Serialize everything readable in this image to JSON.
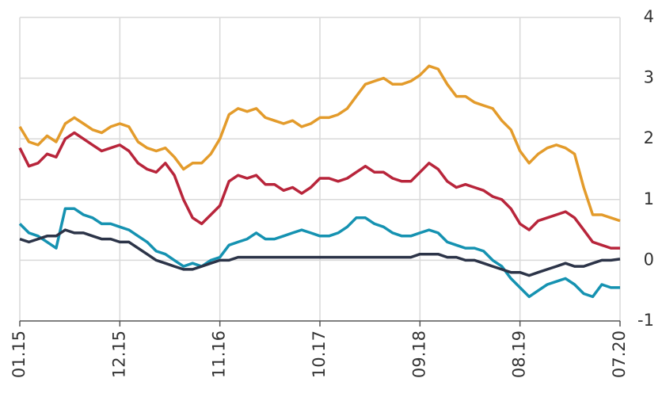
{
  "chart_data": {
    "type": "line",
    "categories": [
      "01.15",
      null,
      null,
      null,
      null,
      null,
      null,
      null,
      null,
      null,
      null,
      "12.15",
      null,
      null,
      null,
      null,
      null,
      null,
      null,
      null,
      null,
      null,
      "11.16",
      null,
      null,
      null,
      null,
      null,
      null,
      null,
      null,
      null,
      null,
      "10.17",
      null,
      null,
      null,
      null,
      null,
      null,
      null,
      null,
      null,
      null,
      "09.18",
      null,
      null,
      null,
      null,
      null,
      null,
      null,
      null,
      null,
      null,
      "08.19",
      null,
      null,
      null,
      null,
      null,
      null,
      null,
      null,
      null,
      null,
      "07.20"
    ],
    "series": [
      {
        "color": "#e39b2b",
        "values": [
          2.2,
          1.95,
          1.9,
          2.05,
          1.95,
          2.25,
          2.35,
          2.25,
          2.15,
          2.1,
          2.2,
          2.25,
          2.2,
          1.95,
          1.85,
          1.8,
          1.85,
          1.7,
          1.5,
          1.6,
          1.6,
          1.75,
          2.0,
          2.4,
          2.5,
          2.45,
          2.5,
          2.35,
          2.3,
          2.25,
          2.3,
          2.2,
          2.25,
          2.35,
          2.35,
          2.4,
          2.5,
          2.7,
          2.9,
          2.95,
          3.0,
          2.9,
          2.9,
          2.95,
          3.05,
          3.2,
          3.15,
          2.9,
          2.7,
          2.7,
          2.6,
          2.55,
          2.5,
          2.3,
          2.15,
          1.8,
          1.6,
          1.75,
          1.85,
          1.9,
          1.85,
          1.75,
          1.2,
          0.75,
          0.75,
          0.7,
          0.65
        ]
      },
      {
        "color": "#b8253b",
        "values": [
          1.85,
          1.55,
          1.6,
          1.75,
          1.7,
          2.0,
          2.1,
          2.0,
          1.9,
          1.8,
          1.85,
          1.9,
          1.8,
          1.6,
          1.5,
          1.45,
          1.6,
          1.4,
          1.0,
          0.7,
          0.6,
          0.75,
          0.9,
          1.3,
          1.4,
          1.35,
          1.4,
          1.25,
          1.25,
          1.15,
          1.2,
          1.1,
          1.2,
          1.35,
          1.35,
          1.3,
          1.35,
          1.45,
          1.55,
          1.45,
          1.45,
          1.35,
          1.3,
          1.3,
          1.45,
          1.6,
          1.5,
          1.3,
          1.2,
          1.25,
          1.2,
          1.15,
          1.05,
          1.0,
          0.85,
          0.6,
          0.5,
          0.65,
          0.7,
          0.75,
          0.8,
          0.7,
          0.5,
          0.3,
          0.25,
          0.2,
          0.2
        ]
      },
      {
        "color": "#1592b1",
        "values": [
          0.6,
          0.45,
          0.4,
          0.3,
          0.2,
          0.85,
          0.85,
          0.75,
          0.7,
          0.6,
          0.6,
          0.55,
          0.5,
          0.4,
          0.3,
          0.15,
          0.1,
          0.0,
          -0.1,
          -0.05,
          -0.1,
          0.0,
          0.05,
          0.25,
          0.3,
          0.35,
          0.45,
          0.35,
          0.35,
          0.4,
          0.45,
          0.5,
          0.45,
          0.4,
          0.4,
          0.45,
          0.55,
          0.7,
          0.7,
          0.6,
          0.55,
          0.45,
          0.4,
          0.4,
          0.45,
          0.5,
          0.45,
          0.3,
          0.25,
          0.2,
          0.2,
          0.15,
          0.0,
          -0.1,
          -0.3,
          -0.45,
          -0.6,
          -0.5,
          -0.4,
          -0.35,
          -0.3,
          -0.4,
          -0.55,
          -0.6,
          -0.4,
          -0.45,
          -0.45
        ]
      },
      {
        "color": "#2c3448",
        "values": [
          0.35,
          0.3,
          0.35,
          0.4,
          0.4,
          0.5,
          0.45,
          0.45,
          0.4,
          0.35,
          0.35,
          0.3,
          0.3,
          0.2,
          0.1,
          0.0,
          -0.05,
          -0.1,
          -0.15,
          -0.15,
          -0.1,
          -0.05,
          0.0,
          0.0,
          0.05,
          0.05,
          0.05,
          0.05,
          0.05,
          0.05,
          0.05,
          0.05,
          0.05,
          0.05,
          0.05,
          0.05,
          0.05,
          0.05,
          0.05,
          0.05,
          0.05,
          0.05,
          0.05,
          0.05,
          0.1,
          0.1,
          0.1,
          0.05,
          0.05,
          0.0,
          0.0,
          -0.05,
          -0.1,
          -0.15,
          -0.2,
          -0.2,
          -0.25,
          -0.2,
          -0.15,
          -0.1,
          -0.05,
          -0.1,
          -0.1,
          -0.05,
          0.0,
          0.0,
          0.02
        ]
      }
    ],
    "ylim": [
      -1,
      4
    ],
    "yticks": [
      -1,
      0,
      1,
      2,
      3,
      4
    ],
    "y_axis_side": "right",
    "grid": true
  }
}
